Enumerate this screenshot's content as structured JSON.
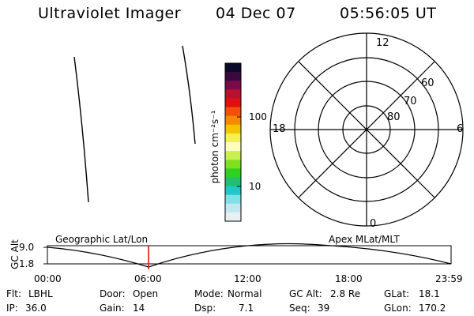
{
  "header": {
    "instrument": "Ultraviolet Imager",
    "date": "04 Dec 07",
    "time": "05:56:05 UT"
  },
  "colorbar": {
    "unit_label": "photon cm⁻²s⁻¹",
    "ticks": [
      "100",
      "10"
    ],
    "colors": [
      "#0a0a2a",
      "#3a0a3e",
      "#7a0a4a",
      "#b8102e",
      "#e01010",
      "#f25008",
      "#f58a00",
      "#f5c400",
      "#f5f050",
      "#ffffc0",
      "#c8f050",
      "#80e020",
      "#30d020",
      "#20c070",
      "#20c8c8",
      "#80e0e8",
      "#c0e8f0",
      "#e8f0f4"
    ]
  },
  "polar_plot": {
    "mlt_labels": {
      "top": "12",
      "right": "6",
      "bottom": "0",
      "left": "18"
    },
    "lat_labels": [
      "60",
      "70",
      "80"
    ]
  },
  "timeline": {
    "axis_label": "GC Alt",
    "y_ticks": [
      "9.0",
      "1.8"
    ],
    "left_title": "Geographic Lat/Lon",
    "right_title": "Apex MLat/MLT",
    "x_ticks": [
      "00:00",
      "06:00",
      "12:00",
      "18:00",
      "23:59"
    ],
    "marker_color": "#e01010"
  },
  "footer": {
    "flt_label": "Flt:",
    "flt_value": "LBHL",
    "ip_label": "IP:",
    "ip_value": "36.0",
    "door_label": "Door:",
    "door_value": "Open",
    "gain_label": "Gain:",
    "gain_value": "14",
    "mode_label": "Mode:",
    "mode_value": "Normal",
    "dsp_label": "Dsp:",
    "dsp_value": "7.1",
    "gcalt_label": "GC Alt:",
    "gcalt_value": "2.8 Re",
    "seq_label": "Seq:",
    "seq_value": "39",
    "glat_label": "GLat:",
    "glat_value": "18.1",
    "glon_label": "GLon:",
    "glon_value": "170.2"
  }
}
